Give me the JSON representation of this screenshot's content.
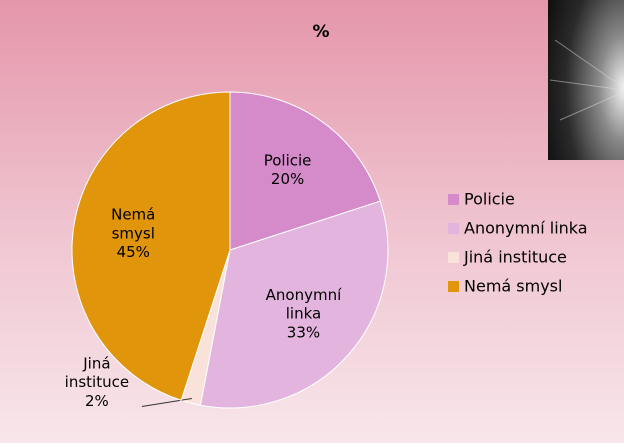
{
  "chart_data": {
    "type": "pie",
    "title": "%",
    "categories": [
      "Policie",
      "Anonymní linka",
      "Jiná instituce",
      "Nemá smysl"
    ],
    "values": [
      20,
      33,
      2,
      45
    ],
    "value_labels": [
      "20%",
      "33%",
      "2%",
      "45%"
    ],
    "colors": [
      "#d58bc9",
      "#e3b5de",
      "#f9e2da",
      "#e0950b"
    ]
  }
}
